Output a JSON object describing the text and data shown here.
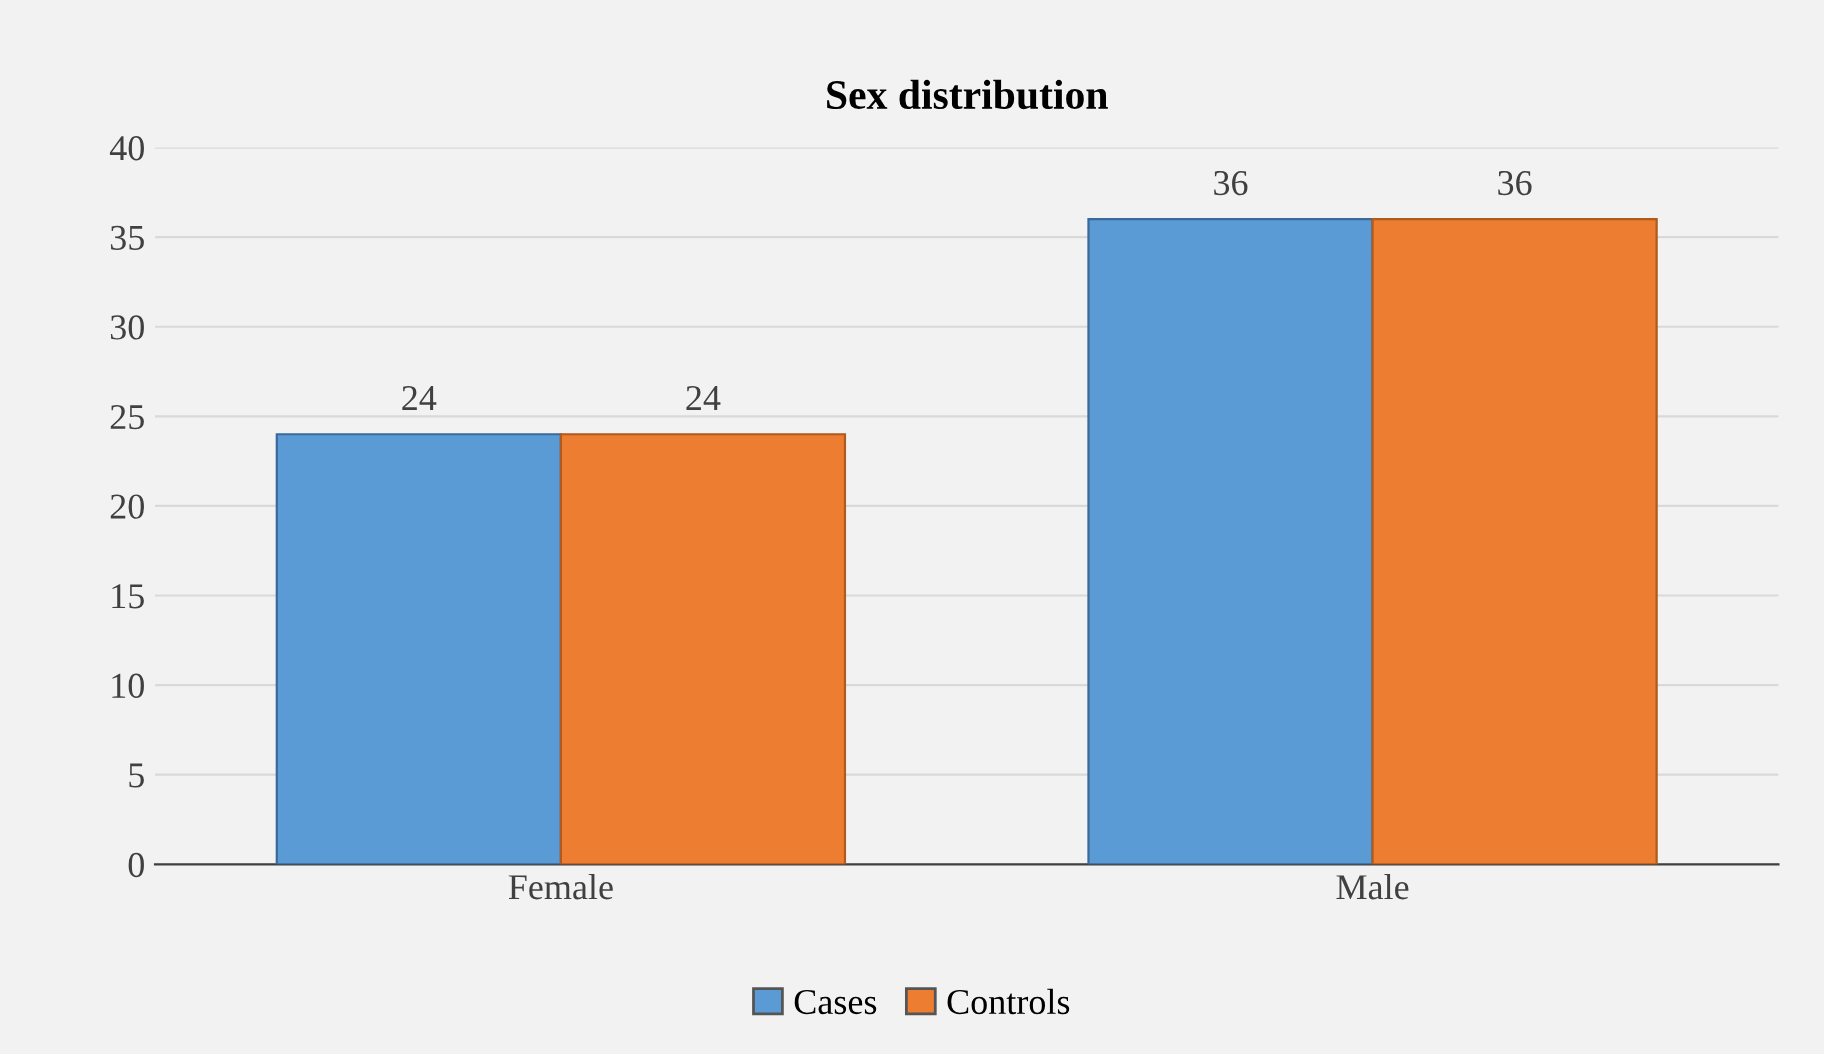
{
  "chart_data": {
    "type": "bar",
    "title": "Sex distribution",
    "categories": [
      "Female",
      "Male"
    ],
    "series": [
      {
        "name": "Cases",
        "color": "#5b9bd5",
        "values": [
          24,
          36
        ]
      },
      {
        "name": "Controls",
        "color": "#ed7d31",
        "values": [
          24,
          36
        ]
      }
    ],
    "ylim": [
      0,
      40
    ],
    "yticks": [
      0,
      5,
      10,
      15,
      20,
      25,
      30,
      35,
      40
    ],
    "grid": "y",
    "legend": "bottom",
    "data_labels": true
  }
}
